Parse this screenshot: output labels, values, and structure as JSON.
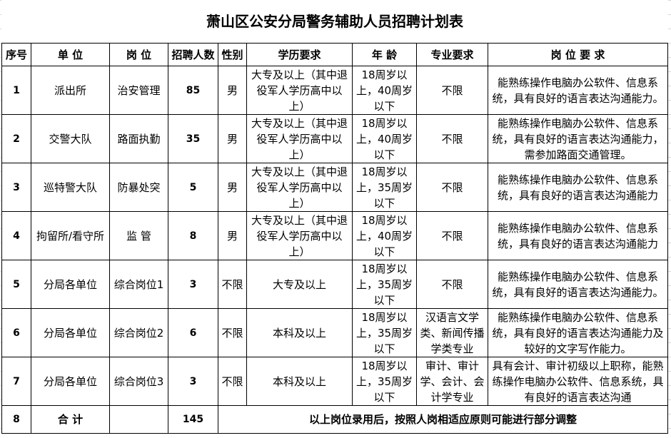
{
  "title": "萧山区公安分局警务辅助人员招聘计划表",
  "headers": [
    "序号",
    "单 位",
    "岗  位",
    "招聘人数",
    "性别",
    "学历要求",
    "年  龄",
    "专业要求",
    "岗 位 要 求"
  ],
  "rows": [
    {
      "no": "1",
      "unit": "派出所",
      "post": "治安管理",
      "count": "85",
      "gender": "男",
      "edu": "大专及以上（其中退役军人学历高中以上）",
      "age": "18周岁以上，40周岁以下",
      "major": "不限",
      "req": "能熟练操作电脑办公软件、信息系统，具有良好的语言表达沟通能力。"
    },
    {
      "no": "2",
      "unit": "交警大队",
      "post": "路面执勤",
      "count": "35",
      "gender": "男",
      "edu": "大专及以上（其中退役军人学历高中以上）",
      "age": "18周岁以上，40周岁以下",
      "major": "不限",
      "req": "能熟练操作电脑办公软件、信息系统，具有良好的语言表达沟通能力，需参加路面交通管理。"
    },
    {
      "no": "3",
      "unit": "巡特警大队",
      "post": "防暴处突",
      "count": "5",
      "gender": "男",
      "edu": "大专及以上（其中退役军人学历高中以上）",
      "age": "18周岁以上，35周岁以下",
      "major": "不限",
      "req": "能熟练操作电脑办公软件、信息系统，具有良好的语言表达沟通能力"
    },
    {
      "no": "4",
      "unit": "拘留所/看守所",
      "post": "监  管",
      "count": "8",
      "gender": "男",
      "edu": "大专及以上（其中退役军人学历高中以上）",
      "age": "18周岁以上，40周岁以下",
      "major": "不限",
      "req": "能熟练操作电脑办公软件、信息系统，具有良好的语言表达沟通能力"
    },
    {
      "no": "5",
      "unit": "分局各单位",
      "post": "综合岗位1",
      "count": "3",
      "gender": "不限",
      "edu": "大专及以上",
      "age": "18周岁以上，35周岁以下",
      "major": "不限",
      "req": "能熟练操作电脑办公软件、信息系统，具有良好的语言表达沟通能力。"
    },
    {
      "no": "6",
      "unit": "分局各单位",
      "post": "综合岗位2",
      "count": "6",
      "gender": "不限",
      "edu": "本科及以上",
      "age": "18周岁以上，35周岁以下",
      "major": "汉语言文学类、新闻传播学类专业",
      "req": "能熟练操作电脑办公软件、信息系统，具有良好的语言表达沟通能力及较好的文字写作能力。"
    },
    {
      "no": "7",
      "unit": "分局各单位",
      "post": "综合岗位3",
      "count": "3",
      "gender": "不限",
      "edu": "本科及以上",
      "age": "18周岁以上，35周岁以下",
      "major": "审计、审计学、会计、会计学专业",
      "req": "具有会计、审计初级以上职称，能熟练操作电脑办公软件、信息系统，具有良好的语言表达沟通"
    }
  ],
  "total": {
    "no": "8",
    "label": "合  计",
    "count": "145",
    "note": "以上岗位录用后，按照人岗相适应原则可能进行部分调整"
  }
}
